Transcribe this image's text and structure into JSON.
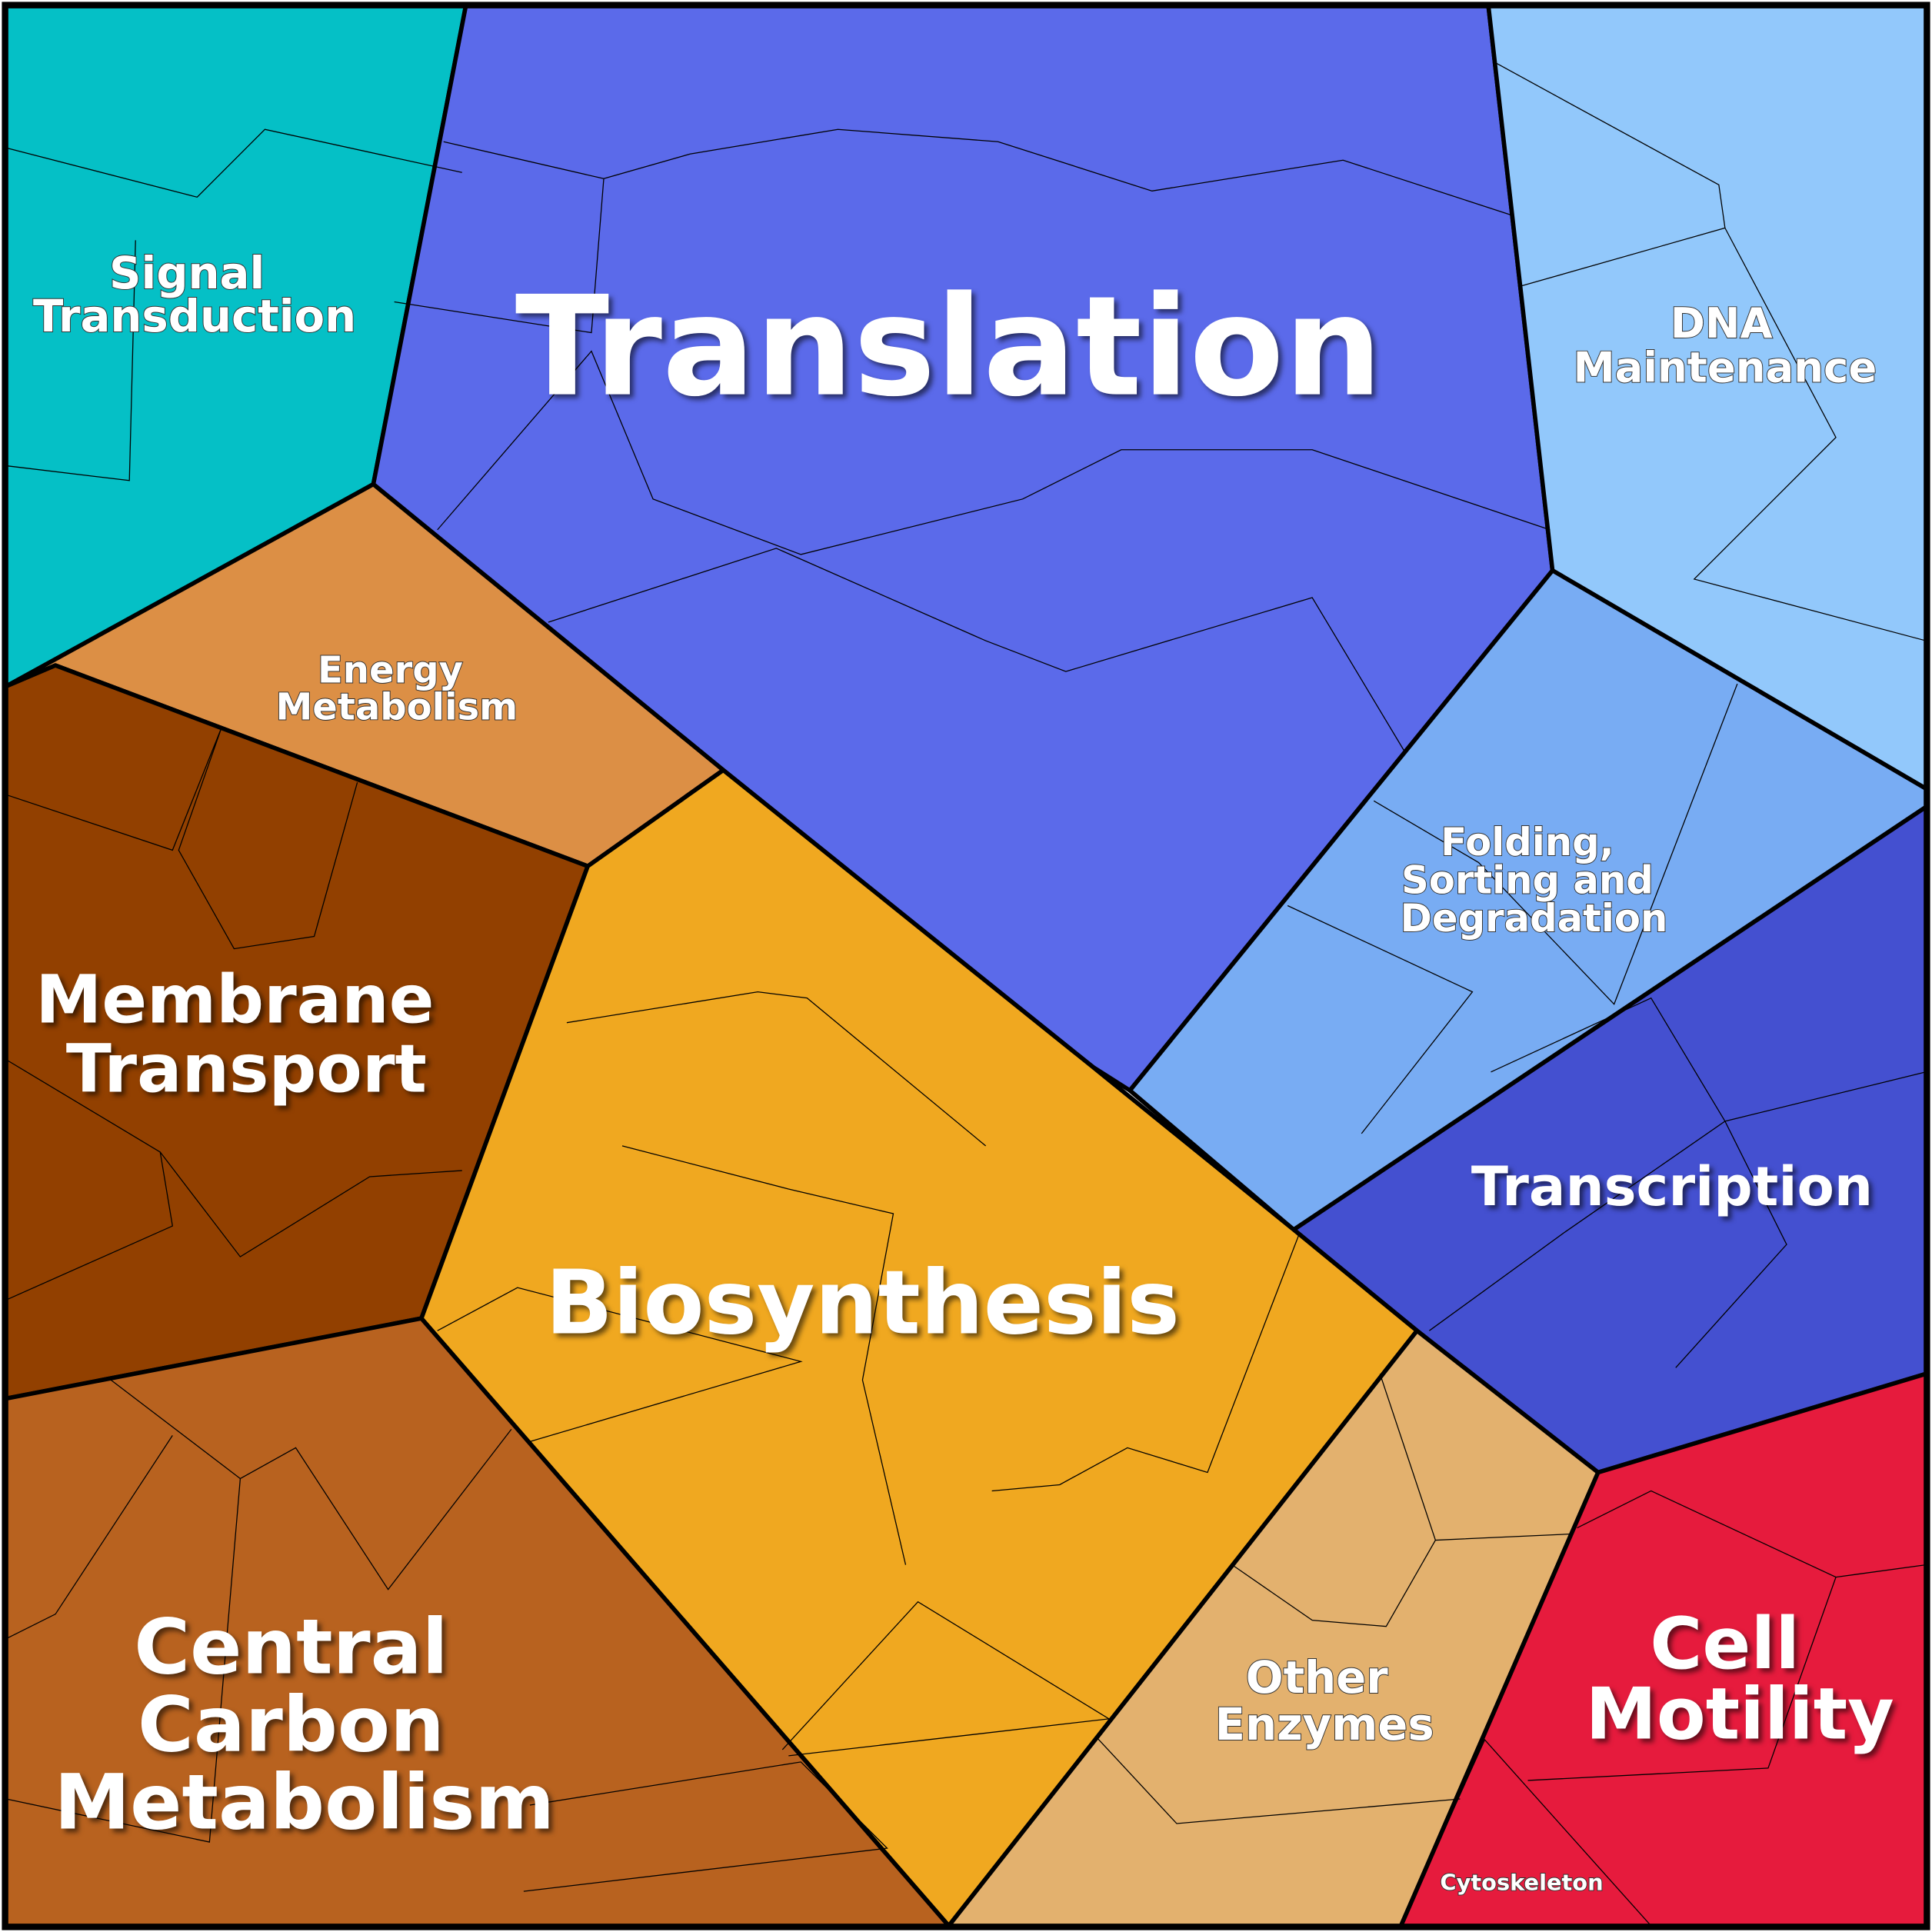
{
  "regions": [
    {
      "label": [
        "Signal",
        "Transduction"
      ]
    },
    {
      "label": [
        "Translation"
      ]
    },
    {
      "label": [
        "DNA",
        "Maintenance"
      ]
    },
    {
      "label": [
        "Energy",
        "Metabolism"
      ]
    },
    {
      "label": [
        "Folding,",
        "Sorting and",
        "Degradation"
      ]
    },
    {
      "label": [
        "Membrane",
        "Transport"
      ]
    },
    {
      "label": [
        "Transcription"
      ]
    },
    {
      "label": [
        "Biosynthesis"
      ]
    },
    {
      "label": [
        "Central",
        "Carbon",
        "Metabolism"
      ]
    },
    {
      "label": [
        "Other",
        "Enzymes"
      ]
    },
    {
      "label": [
        "Cell",
        "Motility"
      ]
    },
    {
      "label": [
        "Cytoskeleton"
      ]
    }
  ]
}
